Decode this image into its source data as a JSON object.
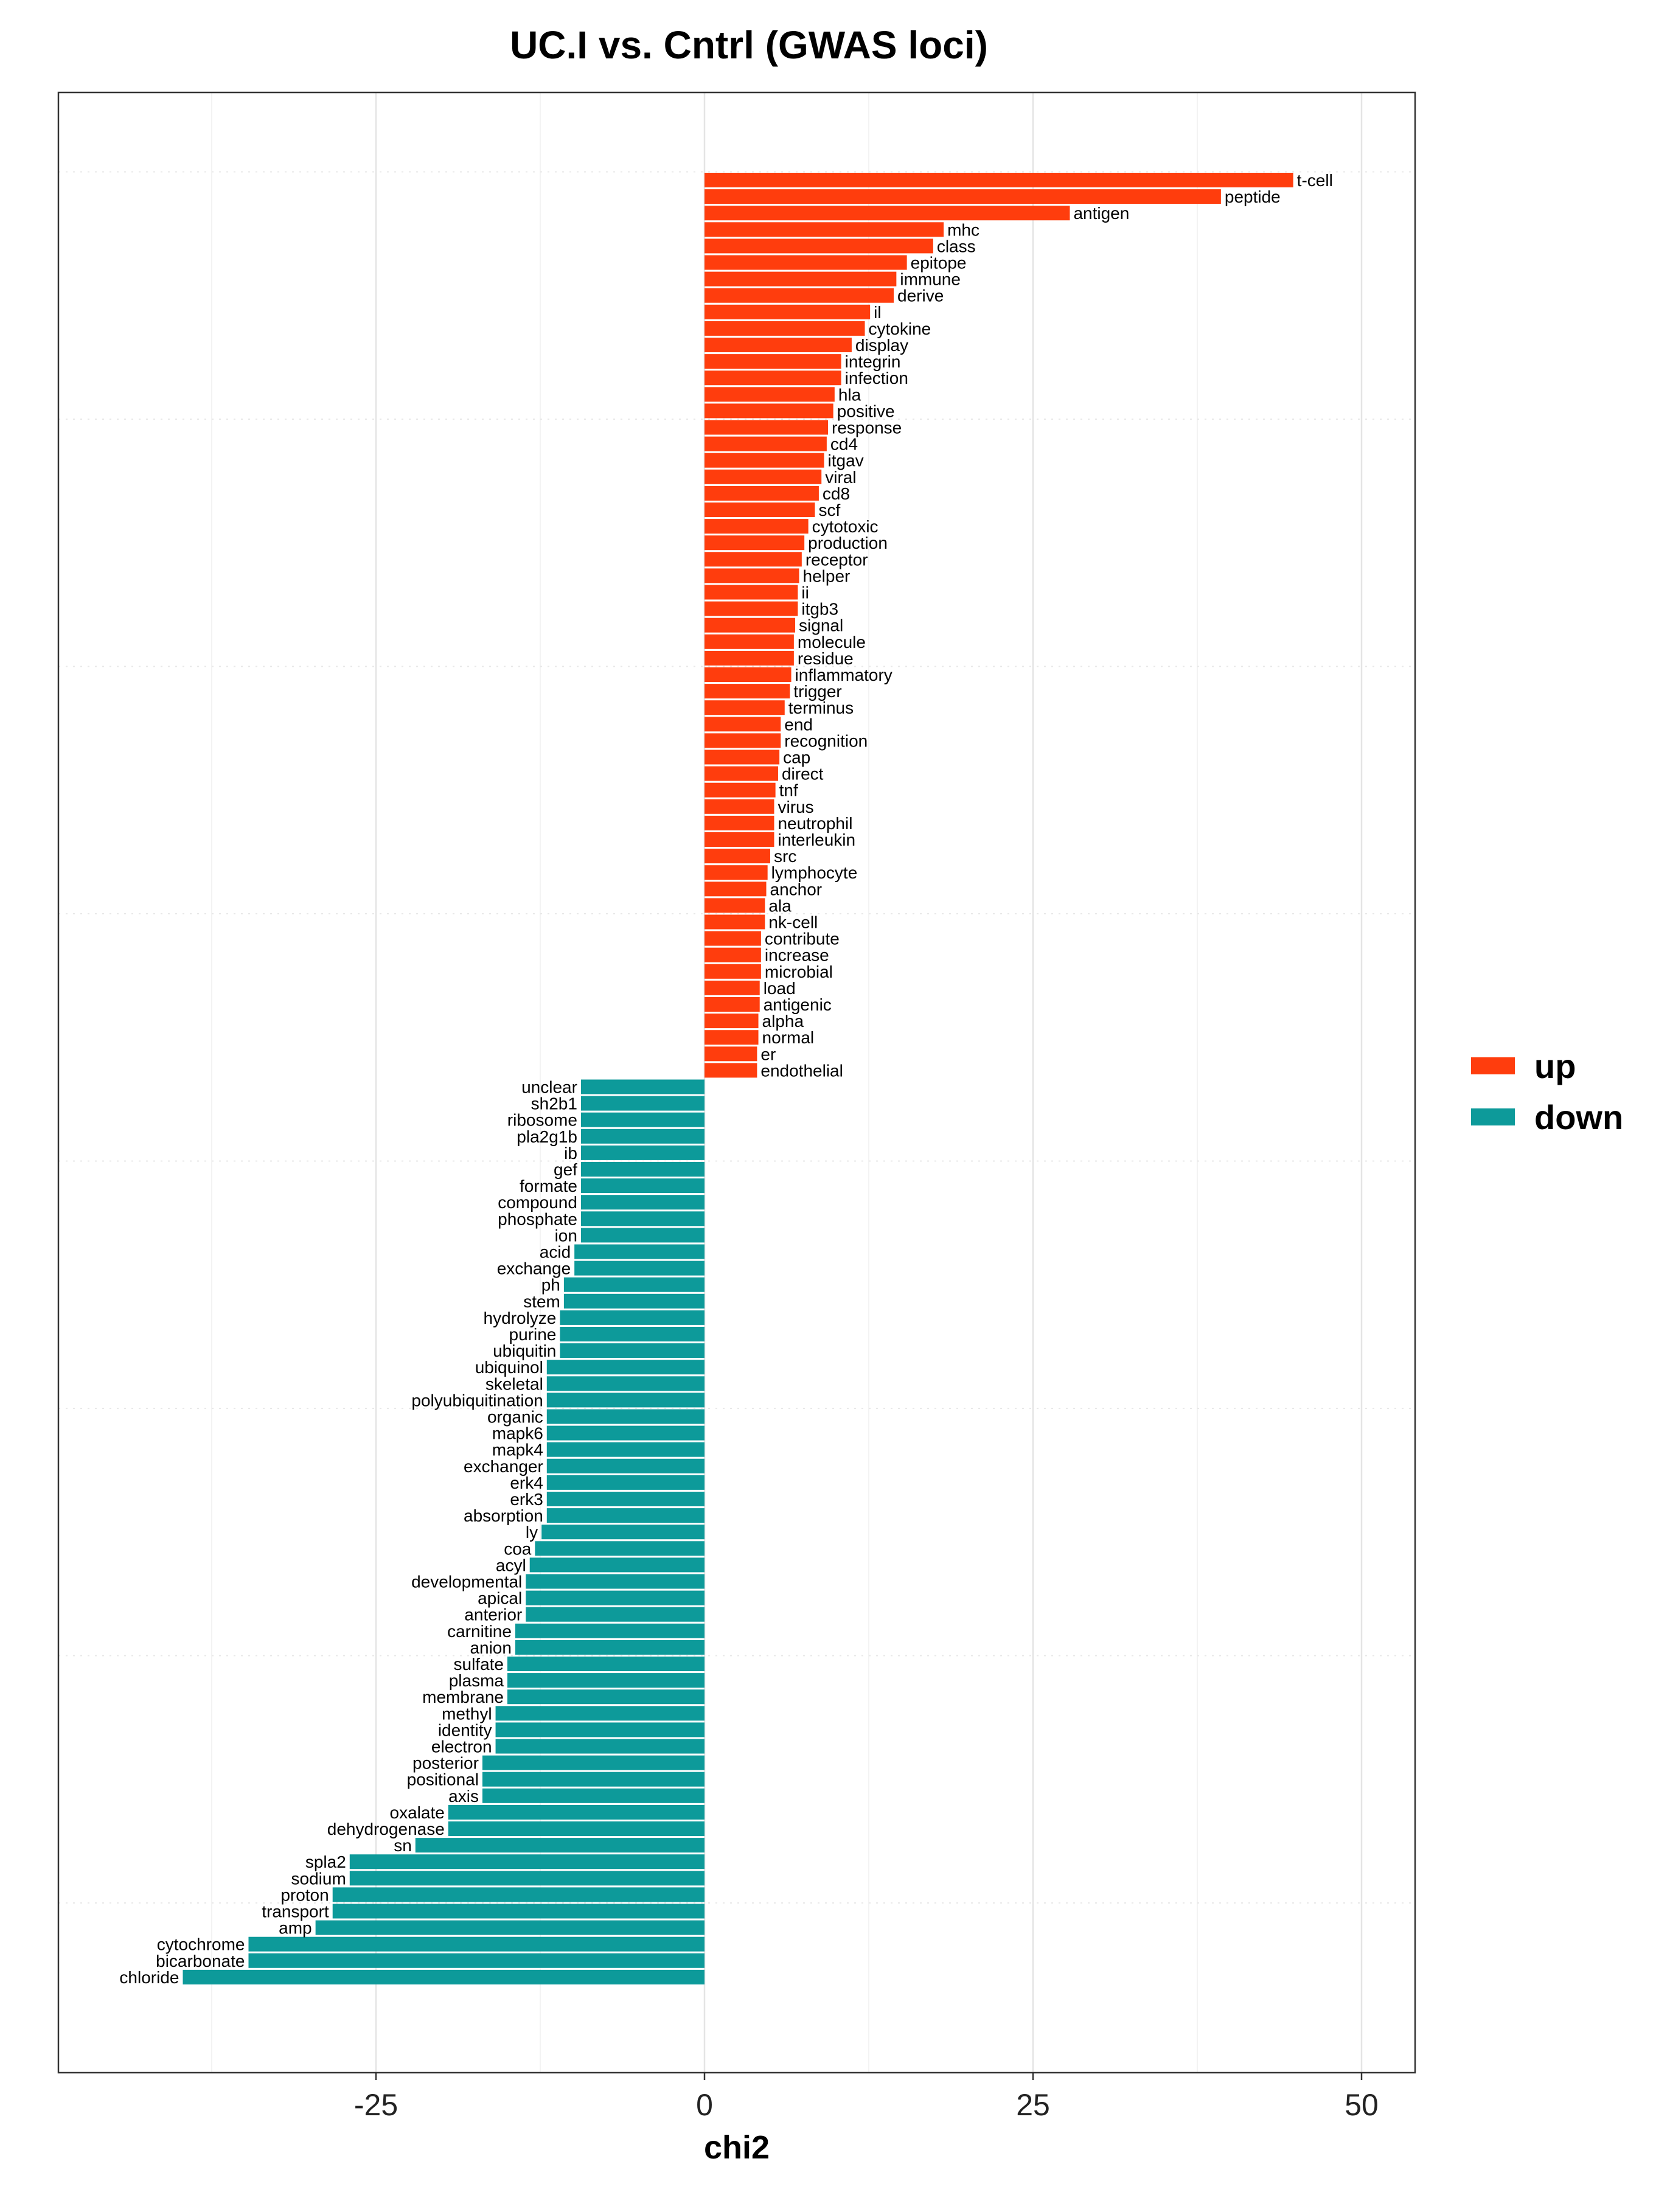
{
  "chart_data": {
    "type": "bar",
    "orientation": "horizontal",
    "title": "UC.I vs. Cntrl (GWAS loci)",
    "xlabel": "chi2",
    "ylabel": "",
    "xlim": [
      -49,
      54
    ],
    "x_ticks": [
      -25,
      0,
      25,
      50
    ],
    "x_tick_labels": [
      "-25",
      "0",
      "25",
      "50"
    ],
    "grid": true,
    "legend_position": "right",
    "series": [
      {
        "name": "up",
        "color": "#FF3D0D",
        "categories": [
          "t-cell",
          "peptide",
          "antigen",
          "mhc",
          "class",
          "epitope",
          "immune",
          "derive",
          "il",
          "cytokine",
          "display",
          "integrin",
          "infection",
          "hla",
          "positive",
          "response",
          "cd4",
          "itgav",
          "viral",
          "cd8",
          "scf",
          "cytotoxic",
          "production",
          "receptor",
          "helper",
          "ii",
          "itgb3",
          "signal",
          "molecule",
          "residue",
          "inflammatory",
          "trigger",
          "terminus",
          "end",
          "recognition",
          "cap",
          "direct",
          "tnf",
          "virus",
          "neutrophil",
          "interleukin",
          "src",
          "lymphocyte",
          "anchor",
          "ala",
          "nk-cell",
          "contribute",
          "increase",
          "microbial",
          "load",
          "antigenic",
          "alpha",
          "normal",
          "er",
          "endothelial"
        ],
        "values": [
          44.8,
          39.3,
          27.8,
          18.2,
          17.4,
          15.4,
          14.6,
          14.4,
          12.6,
          12.2,
          11.2,
          10.4,
          10.4,
          9.9,
          9.8,
          9.4,
          9.3,
          9.1,
          8.9,
          8.7,
          8.4,
          7.9,
          7.6,
          7.4,
          7.2,
          7.1,
          7.1,
          6.9,
          6.8,
          6.8,
          6.6,
          6.5,
          6.1,
          5.8,
          5.8,
          5.7,
          5.6,
          5.4,
          5.3,
          5.3,
          5.3,
          5.0,
          4.8,
          4.7,
          4.6,
          4.6,
          4.3,
          4.3,
          4.3,
          4.2,
          4.2,
          4.1,
          4.1,
          4.0,
          4.0
        ]
      },
      {
        "name": "down",
        "color": "#0D9A9A",
        "categories": [
          "unclear",
          "sh2b1",
          "ribosome",
          "pla2g1b",
          "ib",
          "gef",
          "formate",
          "compound",
          "phosphate",
          "ion",
          "acid",
          "exchange",
          "ph",
          "stem",
          "hydrolyze",
          "purine",
          "ubiquitin",
          "ubiquinol",
          "skeletal",
          "polyubiquitination",
          "organic",
          "mapk6",
          "mapk4",
          "exchanger",
          "erk4",
          "erk3",
          "absorption",
          "ly",
          "coa",
          "acyl",
          "developmental",
          "apical",
          "anterior",
          "carnitine",
          "anion",
          "sulfate",
          "plasma",
          "membrane",
          "methyl",
          "identity",
          "electron",
          "posterior",
          "positional",
          "axis",
          "oxalate",
          "dehydrogenase",
          "sn",
          "spla2",
          "sodium",
          "proton",
          "transport",
          "amp",
          "cytochrome",
          "bicarbonate",
          "chloride"
        ],
        "values": [
          -9.4,
          -9.4,
          -9.4,
          -9.4,
          -9.4,
          -9.4,
          -9.4,
          -9.4,
          -9.4,
          -9.4,
          -9.9,
          -9.9,
          -10.7,
          -10.7,
          -11.0,
          -11.0,
          -11.0,
          -12.0,
          -12.0,
          -12.0,
          -12.0,
          -12.0,
          -12.0,
          -12.0,
          -12.0,
          -12.0,
          -12.0,
          -12.4,
          -12.9,
          -13.3,
          -13.6,
          -13.6,
          -13.6,
          -14.4,
          -14.4,
          -15.0,
          -15.0,
          -15.0,
          -15.9,
          -15.9,
          -15.9,
          -16.9,
          -16.9,
          -16.9,
          -19.5,
          -19.5,
          -22.0,
          -27.0,
          -27.0,
          -28.3,
          -28.3,
          -29.6,
          -34.7,
          -34.7,
          -39.7
        ]
      }
    ],
    "legend": [
      {
        "label": "up",
        "color": "#FF3D0D"
      },
      {
        "label": "down",
        "color": "#0D9A9A"
      }
    ]
  }
}
